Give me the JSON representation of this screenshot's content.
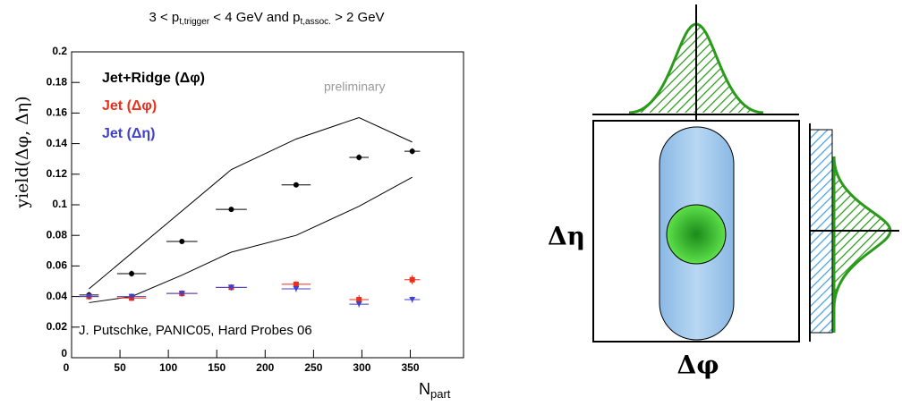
{
  "chart_data": {
    "type": "scatter",
    "title_parts": [
      "3 < p",
      "t,trigger",
      " < 4 GeV and p",
      "t,assoc.",
      " > 2 GeV"
    ],
    "y_label": "yield(Δφ, Δη)",
    "x_label_parts": [
      "N",
      "part"
    ],
    "annotations": [
      "preliminary",
      "J. Putschke, PANIC05, Hard Probes 06"
    ],
    "xlim": [
      0,
      405
    ],
    "xticks": [
      0,
      50,
      100,
      150,
      200,
      250,
      300,
      350
    ],
    "ylim": [
      0,
      0.2
    ],
    "yticks": [
      0,
      0.02,
      0.04,
      0.06,
      0.08,
      0.1,
      0.12,
      0.14,
      0.16,
      0.18,
      0.2
    ],
    "series": [
      {
        "name": "Jet+Ridge (Δφ)",
        "color": "#000000",
        "marker": "circle",
        "x": [
          18,
          62,
          114,
          165,
          232,
          297,
          352
        ],
        "values": [
          0.041,
          0.055,
          0.076,
          0.097,
          0.113,
          0.131,
          0.135
        ],
        "xerr": [
          10,
          15,
          16,
          16,
          15,
          10,
          8
        ],
        "yerr": [
          0.002,
          0.002,
          0.001,
          0.001,
          0.001,
          0.002,
          0.002
        ]
      },
      {
        "name": "Jet (Δφ)",
        "color": "#e8301c",
        "marker": "square",
        "x": [
          18,
          62,
          114,
          165,
          232,
          297,
          352
        ],
        "values": [
          0.04,
          0.039,
          0.042,
          0.046,
          0.048,
          0.038,
          0.051
        ],
        "xerr": [
          10,
          15,
          16,
          16,
          15,
          10,
          8
        ],
        "yerr": [
          0.002,
          0.002,
          0.002,
          0.002,
          0.002,
          0.003,
          0.003
        ]
      },
      {
        "name": "Jet (Δη)",
        "color": "#4040c8",
        "marker": "triangle-down",
        "x": [
          18,
          62,
          114,
          165,
          232,
          297,
          352
        ],
        "values": [
          0.04,
          0.04,
          0.042,
          0.046,
          0.045,
          0.035,
          0.038
        ],
        "xerr": [
          10,
          15,
          16,
          16,
          15,
          10,
          8
        ],
        "yerr": [
          0.002,
          0.002,
          0.002,
          0.002,
          0.002,
          0.002,
          0.002
        ]
      }
    ],
    "bands": [
      {
        "color": "#000000",
        "x": [
          18,
          165,
          232,
          297,
          352
        ],
        "values": [
          0.045,
          0.123,
          0.143,
          0.157,
          0.141
        ]
      },
      {
        "color": "#000000",
        "x": [
          18,
          62,
          114,
          165,
          232,
          297,
          352
        ],
        "values": [
          0.036,
          0.04,
          0.054,
          0.069,
          0.08,
          0.099,
          0.118
        ]
      }
    ]
  },
  "diagram": {
    "y_label": "Δη",
    "x_label": "Δφ"
  }
}
